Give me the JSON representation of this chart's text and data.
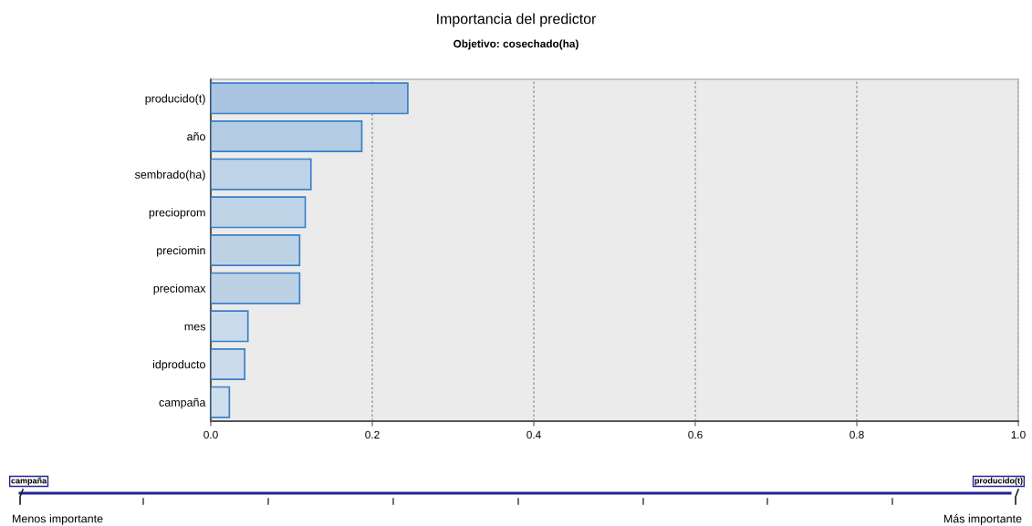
{
  "chart_data": {
    "type": "bar",
    "orientation": "horizontal",
    "title": "Importancia del predictor",
    "subtitle": "Objetivo: cosechado(ha)",
    "categories": [
      "producido(t)",
      "año",
      "sembrado(ha)",
      "precioprom",
      "preciomin",
      "preciomax",
      "mes",
      "idproducto",
      "campaña"
    ],
    "values": [
      0.244,
      0.187,
      0.124,
      0.117,
      0.11,
      0.11,
      0.046,
      0.042,
      0.023
    ],
    "colors": [
      "#a9c5e1",
      "#b3cbe3",
      "#bfd3e7",
      "#bfd3e7",
      "#bed2e5",
      "#bdd1e4",
      "#c9daeb",
      "#cadaeb",
      "#cfdeed"
    ],
    "xlim": [
      0,
      1.0
    ],
    "xticks": [
      {
        "value": 0,
        "label": "0.0"
      },
      {
        "value": 0.2,
        "label": "0.2"
      },
      {
        "value": 0.4,
        "label": "0.4"
      },
      {
        "value": 0.6,
        "label": "0.6"
      },
      {
        "value": 0.8,
        "label": "0.8"
      },
      {
        "value": 1.0,
        "label": "1.0"
      }
    ],
    "grid": "x",
    "annotations": [
      "campaña",
      "producido(t)",
      "Menos importante",
      "Más importante"
    ]
  }
}
